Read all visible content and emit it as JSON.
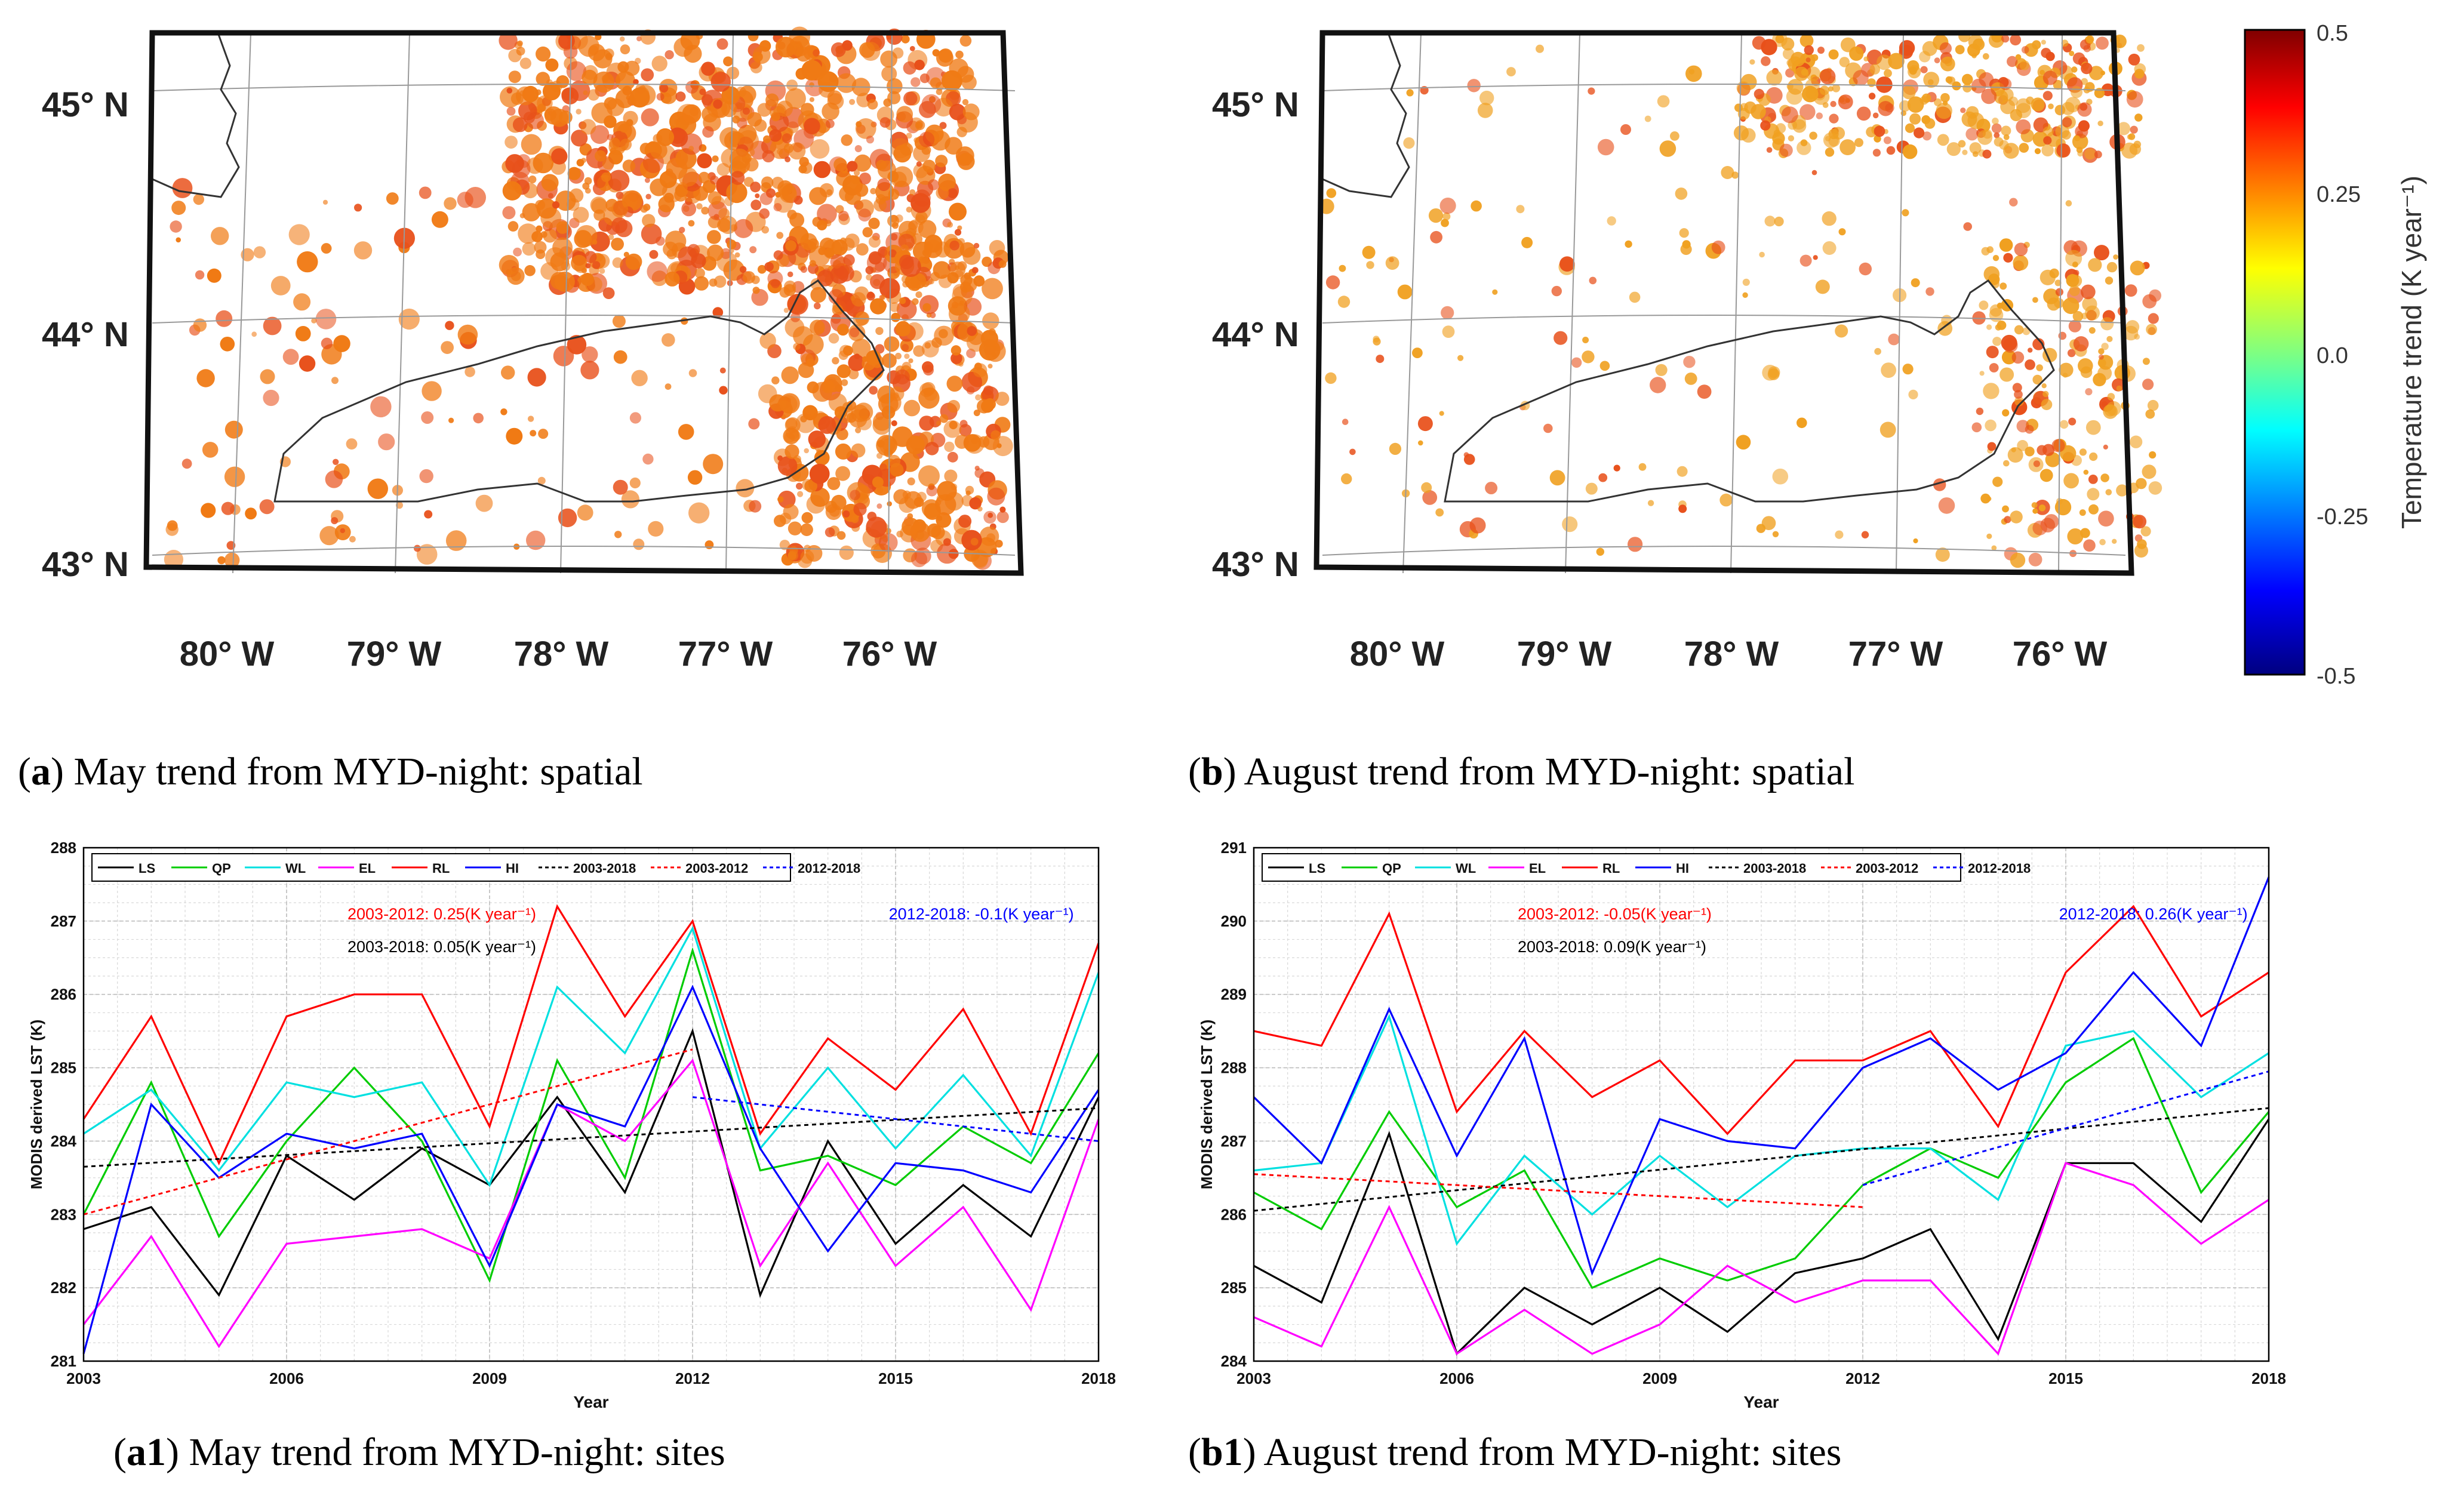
{
  "maps": [
    {
      "id": "a",
      "lat_labels": [
        "45° N",
        "44° N",
        "43° N"
      ],
      "lon_labels": [
        "80° W",
        "79° W",
        "78° W",
        "77° W",
        "76° W"
      ],
      "dominant_color": "#f07a14"
    },
    {
      "id": "b",
      "lat_labels": [
        "45° N",
        "44° N",
        "43° N"
      ],
      "lon_labels": [
        "80° W",
        "79° W",
        "78° W",
        "77° W",
        "76° W"
      ],
      "dominant_color": "#f0a020"
    }
  ],
  "colorbar": {
    "label": "Temperature trend (K year⁻¹)",
    "ticks": [
      "0.5",
      "0.25",
      "0.0",
      "-0.25",
      "-0.5"
    ],
    "colormap": "jet"
  },
  "captions": {
    "a": {
      "tag": "a",
      "text": "May trend from MYD-night: spatial"
    },
    "b": {
      "tag": "b",
      "text": "August trend from MYD-night: spatial"
    },
    "a1": {
      "tag": "a1",
      "text": "May trend from MYD-night: sites"
    },
    "b1": {
      "tag": "b1",
      "text": "August trend from MYD-night: sites"
    }
  },
  "chart_data": [
    {
      "type": "line",
      "xlabel": "Year",
      "ylabel": "MODIS derived LST (K)",
      "xlim": [
        2003,
        2018
      ],
      "ylim": [
        281,
        288
      ],
      "x_ticks": [
        2003,
        2006,
        2009,
        2012,
        2015,
        2018
      ],
      "y_ticks": [
        281,
        282,
        283,
        284,
        285,
        286,
        287,
        288
      ],
      "grid": true,
      "legend_position": "top-left",
      "x": [
        2003,
        2004,
        2005,
        2006,
        2007,
        2008,
        2009,
        2010,
        2011,
        2012,
        2013,
        2014,
        2015,
        2016,
        2017,
        2018
      ],
      "series": [
        {
          "name": "LS",
          "color": "#000000",
          "values": [
            282.8,
            283.1,
            281.9,
            283.8,
            283.2,
            283.9,
            283.4,
            284.6,
            283.3,
            285.5,
            281.9,
            284.0,
            282.6,
            283.4,
            282.7,
            284.6
          ]
        },
        {
          "name": "QP",
          "color": "#00cc00",
          "values": [
            283.0,
            284.8,
            282.7,
            284.0,
            285.0,
            284.0,
            282.1,
            285.1,
            283.5,
            286.6,
            283.6,
            283.8,
            283.4,
            284.2,
            283.7,
            285.2
          ]
        },
        {
          "name": "WL",
          "color": "#00e0e0",
          "values": [
            284.1,
            284.7,
            283.6,
            284.8,
            284.6,
            284.8,
            283.4,
            286.1,
            285.2,
            286.9,
            283.9,
            285.0,
            283.9,
            284.9,
            283.8,
            286.3
          ]
        },
        {
          "name": "EL",
          "color": "#ff00ff",
          "values": [
            281.5,
            282.7,
            281.2,
            282.6,
            282.7,
            282.8,
            282.4,
            284.5,
            284.0,
            285.1,
            282.3,
            283.7,
            282.3,
            283.1,
            281.7,
            284.3
          ]
        },
        {
          "name": "RL",
          "color": "#ff0000",
          "values": [
            284.3,
            285.7,
            283.7,
            285.7,
            286.0,
            286.0,
            284.2,
            287.2,
            285.7,
            287.0,
            284.1,
            285.4,
            284.7,
            285.8,
            284.1,
            286.7
          ]
        },
        {
          "name": "HI",
          "color": "#0000ff",
          "values": [
            281.1,
            284.5,
            283.5,
            284.1,
            283.9,
            284.1,
            282.3,
            284.5,
            284.2,
            286.1,
            283.9,
            282.5,
            283.7,
            283.6,
            283.3,
            284.7
          ]
        }
      ],
      "trends": [
        {
          "name": "2003-2018",
          "color": "#000000",
          "x": [
            2003,
            2018
          ],
          "values": [
            283.65,
            284.45
          ],
          "label": "2003-2018: 0.05(K year⁻¹)"
        },
        {
          "name": "2003-2012",
          "color": "#ff0000",
          "x": [
            2003,
            2012
          ],
          "values": [
            283.0,
            285.25
          ],
          "label": "2003-2012: 0.25(K year⁻¹)"
        },
        {
          "name": "2012-2018",
          "color": "#0000ff",
          "x": [
            2012,
            2018
          ],
          "values": [
            284.6,
            284.0
          ],
          "label": "2012-2018: -0.1(K year⁻¹)"
        }
      ]
    },
    {
      "type": "line",
      "xlabel": "Year",
      "ylabel": "MODIS derived LST (K)",
      "xlim": [
        2003,
        2018
      ],
      "ylim": [
        284,
        291
      ],
      "x_ticks": [
        2003,
        2006,
        2009,
        2012,
        2015,
        2018
      ],
      "y_ticks": [
        284,
        285,
        286,
        287,
        288,
        289,
        290,
        291
      ],
      "grid": true,
      "legend_position": "top-left",
      "x": [
        2003,
        2004,
        2005,
        2006,
        2007,
        2008,
        2009,
        2010,
        2011,
        2012,
        2013,
        2014,
        2015,
        2016,
        2017,
        2018
      ],
      "series": [
        {
          "name": "LS",
          "color": "#000000",
          "values": [
            285.3,
            284.8,
            287.1,
            284.1,
            285.0,
            284.5,
            285.0,
            284.4,
            285.2,
            285.4,
            285.8,
            284.3,
            286.7,
            286.7,
            285.9,
            287.3
          ]
        },
        {
          "name": "QP",
          "color": "#00cc00",
          "values": [
            286.3,
            285.8,
            287.4,
            286.1,
            286.6,
            285.0,
            285.4,
            285.1,
            285.4,
            286.4,
            286.9,
            286.5,
            287.8,
            288.4,
            286.3,
            287.4
          ]
        },
        {
          "name": "WL",
          "color": "#00e0e0",
          "values": [
            286.6,
            286.7,
            288.7,
            285.6,
            286.8,
            286.0,
            286.8,
            286.1,
            286.8,
            286.9,
            286.9,
            286.2,
            288.3,
            288.5,
            287.6,
            288.2
          ]
        },
        {
          "name": "EL",
          "color": "#ff00ff",
          "values": [
            284.6,
            284.2,
            286.1,
            284.1,
            284.7,
            284.1,
            284.5,
            285.3,
            284.8,
            285.1,
            285.1,
            284.1,
            286.7,
            286.4,
            285.6,
            286.2
          ]
        },
        {
          "name": "RL",
          "color": "#ff0000",
          "values": [
            288.5,
            288.3,
            290.1,
            287.4,
            288.5,
            287.6,
            288.1,
            287.1,
            288.1,
            288.1,
            288.5,
            287.2,
            289.3,
            290.2,
            288.7,
            289.3
          ]
        },
        {
          "name": "HI",
          "color": "#0000ff",
          "values": [
            287.6,
            286.7,
            288.8,
            286.8,
            288.4,
            285.2,
            287.3,
            287.0,
            286.9,
            288.0,
            288.4,
            287.7,
            288.2,
            289.3,
            288.3,
            290.6
          ]
        }
      ],
      "trends": [
        {
          "name": "2003-2018",
          "color": "#000000",
          "x": [
            2003,
            2018
          ],
          "values": [
            286.05,
            287.45
          ],
          "label": "2003-2018: 0.09(K year⁻¹)"
        },
        {
          "name": "2003-2012",
          "color": "#ff0000",
          "x": [
            2003,
            2012
          ],
          "values": [
            286.55,
            286.1
          ],
          "label": "2003-2012: -0.05(K year⁻¹)"
        },
        {
          "name": "2012-2018",
          "color": "#0000ff",
          "x": [
            2012,
            2018
          ],
          "values": [
            286.4,
            287.95
          ],
          "label": "2012-2018: 0.26(K year⁻¹)"
        }
      ]
    }
  ]
}
